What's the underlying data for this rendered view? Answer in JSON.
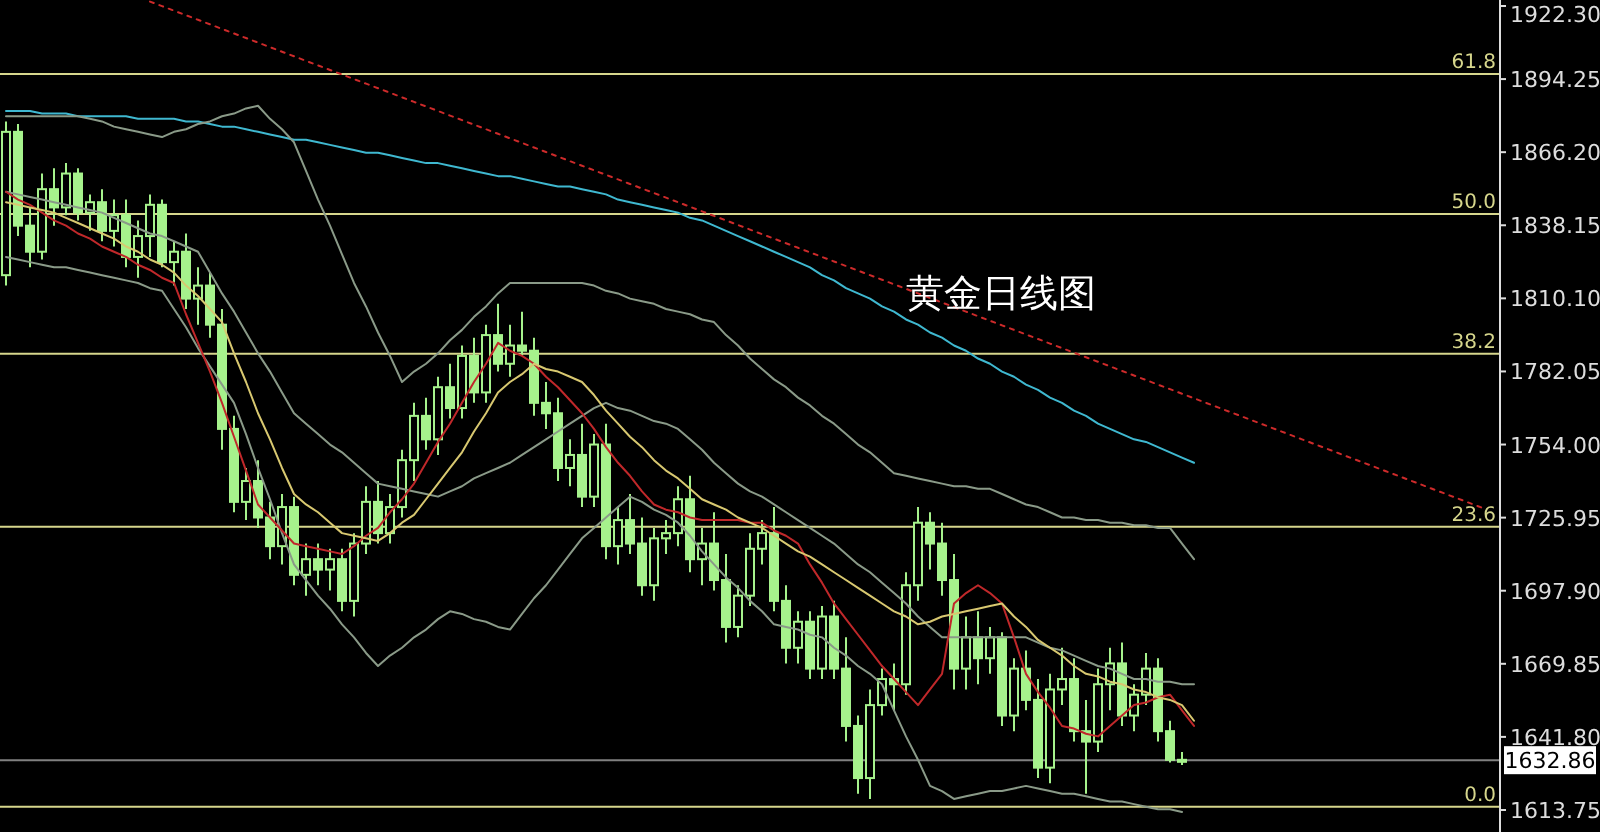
{
  "chart_data": {
    "type": "candlestick",
    "color": "#a6f28c",
    "tick_labels": "y",
    "annotations": [
      "黄金日线图",
      {
        "text": "61.8",
        "y": 1896.2
      },
      {
        "text": "50.0",
        "y": 1842.5
      },
      {
        "text": "38.2",
        "y": 1788.8
      },
      {
        "text": "23.6",
        "y": 1722.4
      },
      {
        "text": "0.0",
        "y": 1615
      }
    ],
    "ylim": [
      1605.3,
      1924.6
    ],
    "yticks": [
      1613.75,
      {
        "value": 1641.8,
        "label": "1641.80"
      },
      1669.85,
      {
        "value": 1697.9,
        "label": "1697.90"
      },
      1725.95,
      {
        "value": 1754,
        "label": "1754.00"
      },
      1782.05,
      {
        "value": 1810.1,
        "label": "1810.10"
      },
      1838.15,
      {
        "value": 1866.2,
        "label": "1866.20"
      },
      1894.25,
      {
        "value": 1922.3,
        "label": "1922.30"
      }
    ],
    "categories": [
      null,
      null,
      null,
      null,
      null,
      null,
      null,
      null,
      null,
      null,
      null,
      null,
      null,
      null,
      null,
      null,
      null,
      null,
      null,
      null,
      null,
      null,
      null,
      null,
      null,
      null,
      null,
      null,
      null,
      null,
      null,
      null,
      null,
      null,
      null,
      null,
      null,
      null,
      null,
      null,
      null,
      null,
      null,
      null,
      null,
      null,
      null,
      null,
      null,
      null,
      null,
      null,
      null,
      null,
      null,
      null,
      null,
      null,
      null,
      null,
      null,
      null,
      null,
      null,
      null,
      null,
      null,
      null,
      null,
      null,
      null,
      null,
      null,
      null,
      null,
      null,
      null,
      null,
      null,
      null,
      null,
      null,
      null,
      null,
      null,
      null,
      null,
      null,
      null,
      null,
      null,
      null,
      null,
      null,
      null,
      null,
      null,
      null,
      null,
      null,
      null,
      null,
      null,
      null,
      null,
      null,
      null,
      null,
      null,
      null,
      null,
      null,
      null,
      null,
      null,
      null,
      null,
      null,
      null,
      null,
      null,
      null,
      null,
      null,
      null
    ],
    "ohlc": [
      [
        1819,
        1878,
        1815,
        1874
      ],
      [
        1874,
        1877,
        1834,
        1838
      ],
      [
        1838,
        1845,
        1822,
        1828
      ],
      [
        1828,
        1858,
        1825,
        1852
      ],
      [
        1852,
        1860,
        1838,
        1845
      ],
      [
        1845,
        1862,
        1842,
        1858
      ],
      [
        1858,
        1860,
        1840,
        1843
      ],
      [
        1843,
        1850,
        1836,
        1847
      ],
      [
        1847,
        1852,
        1832,
        1836
      ],
      [
        1836,
        1848,
        1830,
        1842
      ],
      [
        1842,
        1848,
        1822,
        1826
      ],
      [
        1826,
        1840,
        1818,
        1834
      ],
      [
        1834,
        1850,
        1826,
        1846
      ],
      [
        1846,
        1848,
        1822,
        1824
      ],
      [
        1824,
        1832,
        1815,
        1828
      ],
      [
        1828,
        1835,
        1806,
        1810
      ],
      [
        1810,
        1822,
        1800,
        1815
      ],
      [
        1815,
        1820,
        1795,
        1800
      ],
      [
        1800,
        1806,
        1752,
        1760
      ],
      [
        1760,
        1765,
        1728,
        1732
      ],
      [
        1732,
        1745,
        1725,
        1740
      ],
      [
        1740,
        1748,
        1722,
        1726
      ],
      [
        1726,
        1732,
        1710,
        1715
      ],
      [
        1715,
        1735,
        1708,
        1730
      ],
      [
        1730,
        1734,
        1700,
        1704
      ],
      [
        1704,
        1716,
        1696,
        1710
      ],
      [
        1710,
        1716,
        1700,
        1706
      ],
      [
        1706,
        1714,
        1698,
        1710
      ],
      [
        1710,
        1714,
        1690,
        1694
      ],
      [
        1694,
        1720,
        1688,
        1716
      ],
      [
        1716,
        1738,
        1712,
        1732
      ],
      [
        1732,
        1740,
        1716,
        1720
      ],
      [
        1720,
        1735,
        1716,
        1730
      ],
      [
        1730,
        1752,
        1726,
        1748
      ],
      [
        1748,
        1770,
        1740,
        1765
      ],
      [
        1765,
        1772,
        1752,
        1756
      ],
      [
        1756,
        1780,
        1750,
        1776
      ],
      [
        1776,
        1785,
        1764,
        1768
      ],
      [
        1768,
        1792,
        1764,
        1788
      ],
      [
        1788,
        1795,
        1770,
        1774
      ],
      [
        1774,
        1800,
        1770,
        1796
      ],
      [
        1796,
        1808,
        1782,
        1785
      ],
      [
        1785,
        1800,
        1780,
        1792
      ],
      [
        1792,
        1805,
        1788,
        1790
      ],
      [
        1790,
        1795,
        1765,
        1770
      ],
      [
        1770,
        1778,
        1760,
        1766
      ],
      [
        1766,
        1772,
        1740,
        1745
      ],
      [
        1745,
        1756,
        1738,
        1750
      ],
      [
        1750,
        1762,
        1730,
        1734
      ],
      [
        1734,
        1758,
        1730,
        1754
      ],
      [
        1754,
        1762,
        1710,
        1715
      ],
      [
        1715,
        1730,
        1708,
        1725
      ],
      [
        1725,
        1735,
        1712,
        1716
      ],
      [
        1716,
        1726,
        1696,
        1700
      ],
      [
        1700,
        1722,
        1694,
        1718
      ],
      [
        1718,
        1725,
        1712,
        1720
      ],
      [
        1720,
        1738,
        1715,
        1733
      ],
      [
        1733,
        1742,
        1705,
        1710
      ],
      [
        1710,
        1722,
        1700,
        1716
      ],
      [
        1716,
        1728,
        1698,
        1702
      ],
      [
        1702,
        1712,
        1678,
        1684
      ],
      [
        1684,
        1700,
        1680,
        1696
      ],
      [
        1696,
        1720,
        1692,
        1714
      ],
      [
        1714,
        1725,
        1708,
        1720
      ],
      [
        1720,
        1730,
        1690,
        1694
      ],
      [
        1694,
        1700,
        1670,
        1676
      ],
      [
        1676,
        1690,
        1670,
        1686
      ],
      [
        1686,
        1690,
        1664,
        1668
      ],
      [
        1668,
        1692,
        1664,
        1688
      ],
      [
        1688,
        1694,
        1664,
        1668
      ],
      [
        1668,
        1680,
        1640,
        1646
      ],
      [
        1646,
        1650,
        1620,
        1626
      ],
      [
        1626,
        1660,
        1618,
        1654
      ],
      [
        1654,
        1668,
        1650,
        1664
      ],
      [
        1664,
        1670,
        1652,
        1662
      ],
      [
        1662,
        1705,
        1658,
        1700
      ],
      [
        1700,
        1730,
        1694,
        1724
      ],
      [
        1724,
        1728,
        1706,
        1716
      ],
      [
        1716,
        1724,
        1696,
        1702
      ],
      [
        1702,
        1712,
        1660,
        1668
      ],
      [
        1668,
        1688,
        1660,
        1680
      ],
      [
        1680,
        1690,
        1662,
        1672
      ],
      [
        1672,
        1684,
        1666,
        1680
      ],
      [
        1680,
        1682,
        1646,
        1650
      ],
      [
        1650,
        1672,
        1644,
        1668
      ],
      [
        1668,
        1675,
        1652,
        1656
      ],
      [
        1656,
        1664,
        1626,
        1630
      ],
      [
        1630,
        1666,
        1624,
        1660
      ],
      [
        1660,
        1676,
        1654,
        1664
      ],
      [
        1664,
        1672,
        1640,
        1644
      ],
      [
        1644,
        1656,
        1620,
        1640
      ],
      [
        1640,
        1668,
        1636,
        1662
      ],
      [
        1662,
        1676,
        1652,
        1670
      ],
      [
        1670,
        1678,
        1646,
        1650
      ],
      [
        1650,
        1662,
        1644,
        1658
      ],
      [
        1658,
        1674,
        1654,
        1668
      ],
      [
        1668,
        1672,
        1640,
        1644
      ],
      [
        1644,
        1648,
        1632,
        1633
      ],
      [
        1633,
        1636,
        1631,
        1632.86
      ],
      null,
      null,
      null,
      null,
      null,
      null,
      null,
      null,
      null,
      null,
      null,
      null,
      null,
      null,
      null,
      null,
      null,
      null,
      null,
      null,
      null,
      null,
      null,
      null,
      null,
      null
    ],
    "series": [
      {
        "type": "line",
        "color": "#cc2a2a",
        "line_style": "dotted",
        "values": [
          null,
          null,
          null,
          null,
          null,
          null,
          null,
          null,
          null,
          null,
          null,
          null,
          1924,
          1922.25,
          1920.5,
          1918.75,
          1917,
          1915.25,
          1913.5,
          1911.75,
          1910,
          1908.25,
          1906.5,
          1904.75,
          1903,
          1901.25,
          1899.5,
          1897.75,
          1896,
          1894.25,
          1892.5,
          1890.75,
          1889,
          1887.25,
          1885.5,
          1883.75,
          1882,
          1880.25,
          1878.5,
          1876.75,
          1875,
          1873.25,
          1871.5,
          1869.75,
          1868,
          1866.25,
          1864.5,
          1862.75,
          1861,
          1859.25,
          1857.5,
          1855.75,
          1854,
          1852.25,
          1850.5,
          1848.75,
          1847,
          1845.25,
          1843.5,
          1841.75,
          1840,
          1838.25,
          1836.5,
          1834.75,
          1833,
          1831.25,
          1829.5,
          1827.75,
          1826,
          1824.25,
          1822.5,
          1820.75,
          1819,
          1817.25,
          1815.5,
          1813.75,
          1812,
          1810.25,
          1808.5,
          1806.75,
          1805,
          1803.25,
          1801.5,
          1799.75,
          1798,
          1796.25,
          1794.5,
          1792.75,
          1791,
          1789.25,
          1787.5,
          1785.75,
          1784,
          1782.25,
          1780.5,
          1778.75,
          1777,
          1775.25,
          1773.5,
          1771.75,
          1770,
          1768.25,
          1766.5,
          1764.75,
          1763,
          1761.25,
          1759.5,
          1757.75,
          1756,
          1754.25,
          1752.5,
          1750.75,
          1749,
          1747.25,
          1745.5,
          1743.75,
          1742,
          1740.25,
          1738.5,
          1736.75,
          1735,
          1733.25,
          1731.5,
          1729.75,
          null
        ]
      },
      {
        "type": "line",
        "color": "#3fb8d0",
        "values": [
          1882,
          1882,
          1882,
          1881,
          1881,
          1881,
          1880,
          1880,
          1880,
          1880,
          1880,
          1879,
          1879,
          1879,
          1879,
          1878,
          1878,
          1877,
          1876,
          1876,
          1875,
          1874,
          1873,
          1872,
          1871,
          1871,
          1870,
          1869,
          1868,
          1867,
          1866,
          1866,
          1865,
          1864,
          1863,
          1862,
          1862,
          1861,
          1860,
          1859,
          1858,
          1857,
          1857,
          1856,
          1855,
          1854,
          1853,
          1853,
          1852,
          1851,
          1850,
          1848,
          1847,
          1846,
          1845,
          1844,
          1843,
          1841,
          1840,
          1838,
          1836,
          1834,
          1832,
          1830,
          1828,
          1826,
          1824,
          1822,
          1819,
          1817,
          1814,
          1812,
          1810,
          1807,
          1805,
          1802,
          1800,
          1797,
          1795,
          1792,
          1790,
          1787,
          1785,
          1782,
          1780,
          1777,
          1775,
          1772,
          1770,
          1767,
          1765,
          1762,
          1760,
          1758,
          1756,
          1755,
          1753,
          1751,
          1749,
          1747,
          null,
          null,
          null,
          null,
          null,
          null,
          null,
          null,
          null,
          null,
          null,
          null,
          null,
          null,
          null,
          null,
          null,
          null,
          null,
          null,
          null,
          null,
          null,
          null,
          null
        ]
      },
      {
        "type": "line",
        "color": "#8a9a88",
        "values": [
          1880,
          1880,
          1880,
          1880,
          1880,
          1880,
          1880,
          1879,
          1878,
          1876,
          1875,
          1874,
          1873,
          1872,
          1874,
          1875,
          1877,
          1878,
          1880,
          1881,
          1883,
          1884,
          1879,
          1875,
          1870,
          1859,
          1848,
          1838,
          1827,
          1816,
          1807,
          1797,
          1788,
          1778,
          1782,
          1785,
          1789,
          1794,
          1798,
          1803,
          1807,
          1812,
          1816,
          1816,
          1816,
          1816,
          1816,
          1816,
          1816,
          1815,
          1813,
          1812,
          1810,
          1809,
          1808,
          1806,
          1805,
          1804,
          1802,
          1801,
          1796,
          1792,
          1787,
          1783,
          1779,
          1776,
          1772,
          1769,
          1765,
          1762,
          1758,
          1754,
          1751,
          1747,
          1743,
          1742,
          1741,
          1740,
          1739,
          1738,
          1738,
          1737,
          1737,
          1735,
          1733,
          1731,
          1730,
          1728,
          1726,
          1726,
          1725,
          1725,
          1724,
          1724,
          1723,
          1723,
          1722,
          1722,
          1716,
          1710,
          null,
          null,
          null,
          null,
          null,
          null,
          null,
          null,
          null,
          null,
          null,
          null,
          null,
          null,
          null,
          null,
          null,
          null,
          null,
          null,
          null,
          null,
          null,
          null,
          null
        ]
      },
      {
        "type": "line",
        "color": "#8a9a88",
        "values": [
          1851,
          1850,
          1849,
          1848,
          1847,
          1846,
          1845,
          1844,
          1843,
          1841,
          1839,
          1837,
          1835,
          1834,
          1832,
          1830,
          1828,
          1820,
          1812,
          1805,
          1797,
          1789,
          1782,
          1774,
          1766,
          1762,
          1758,
          1754,
          1751,
          1747,
          1743,
          1739,
          1738,
          1737,
          1736,
          1735,
          1734,
          1736,
          1738,
          1741,
          1743,
          1745,
          1747,
          1750,
          1753,
          1756,
          1759,
          1762,
          1765,
          1768,
          1770,
          1768,
          1767,
          1765,
          1763,
          1762,
          1760,
          1756,
          1752,
          1747,
          1743,
          1739,
          1736,
          1734,
          1731,
          1728,
          1725,
          1722,
          1719,
          1716,
          1712,
          1708,
          1705,
          1701,
          1697,
          1693,
          1688,
          1684,
          1680,
          1680,
          1680,
          1680,
          1680,
          1680,
          1680,
          1680,
          1678,
          1676,
          1675,
          1673,
          1671,
          1669,
          1668,
          1666,
          1664,
          1664,
          1663,
          1663,
          1662,
          1662,
          null,
          null,
          null,
          null,
          null,
          null,
          null,
          null,
          null,
          null,
          null,
          null,
          null,
          null,
          null,
          null,
          null,
          null,
          null,
          null,
          null,
          null,
          null,
          null,
          null
        ]
      },
      {
        "type": "line",
        "color": "#8a9a88",
        "values": [
          1826,
          1825,
          1824,
          1823,
          1822,
          1822,
          1821,
          1820,
          1819,
          1818,
          1817,
          1816,
          1814,
          1813,
          1806,
          1799,
          1791,
          1784,
          1777,
          1770,
          1758,
          1745,
          1733,
          1720,
          1708,
          1702,
          1696,
          1691,
          1685,
          1680,
          1674,
          1669,
          1673,
          1676,
          1680,
          1683,
          1687,
          1690,
          1689,
          1687,
          1686,
          1684,
          1683,
          1689,
          1695,
          1700,
          1706,
          1712,
          1718,
          1722,
          1726,
          1730,
          1734,
          1732,
          1729,
          1727,
          1724,
          1719,
          1713,
          1708,
          1703,
          1699,
          1694,
          1690,
          1685,
          1684,
          1683,
          1681,
          1680,
          1676,
          1673,
          1669,
          1666,
          1662,
          1652,
          1642,
          1633,
          1623,
          1621,
          1618,
          1619,
          1620,
          1621,
          1621,
          1622,
          1623,
          1622,
          1621,
          1620,
          1620,
          1619,
          1618,
          1617,
          1617,
          1616,
          1615,
          1614,
          1614,
          1613,
          null,
          null,
          null,
          null,
          null,
          null,
          null,
          null,
          null,
          null,
          null,
          null,
          null,
          null,
          null,
          null,
          null,
          null,
          null,
          null,
          null,
          null,
          null,
          null,
          null,
          null
        ]
      },
      {
        "type": "line",
        "color": "#c0282a",
        "values": [
          1851,
          1848,
          1846,
          1843,
          1840,
          1838,
          1835,
          1833,
          1830,
          1828,
          1826,
          1823,
          1821,
          1818,
          1816,
          1804,
          1793,
          1782,
          1770,
          1757,
          1744,
          1731,
          1726,
          1721,
          1716,
          1715,
          1714,
          1713,
          1712,
          1715,
          1719,
          1722,
          1728,
          1733,
          1739,
          1747,
          1755,
          1762,
          1770,
          1778,
          1785,
          1793,
          1790,
          1788,
          1785,
          1780,
          1776,
          1771,
          1766,
          1760,
          1753,
          1747,
          1742,
          1736,
          1731,
          1729,
          1728,
          1726,
          1725,
          1725,
          1725,
          1725,
          1724,
          1724,
          1721,
          1719,
          1716,
          1708,
          1701,
          1693,
          1687,
          1681,
          1675,
          1669,
          1664,
          1659,
          1654,
          1660,
          1666,
          1693,
          1697,
          1700,
          1697,
          1693,
          1680,
          1666,
          1659,
          1653,
          1646,
          1645,
          1643,
          1642,
          1646,
          1650,
          1654,
          1655,
          1657,
          1658,
          1652,
          1646,
          null,
          null,
          null,
          null,
          null,
          null,
          null,
          null,
          null,
          null,
          null,
          null,
          null,
          null,
          null,
          null,
          null,
          null,
          null,
          null,
          null,
          null,
          null,
          null,
          null
        ]
      },
      {
        "type": "line",
        "color": "#d8c870",
        "values": [
          1847,
          1846,
          1845,
          1844,
          1843,
          1841,
          1839,
          1837,
          1835,
          1833,
          1830,
          1828,
          1825,
          1823,
          1820,
          1815,
          1811,
          1806,
          1801,
          1789,
          1778,
          1766,
          1756,
          1745,
          1735,
          1731,
          1728,
          1724,
          1720,
          1719,
          1718,
          1717,
          1720,
          1724,
          1727,
          1733,
          1739,
          1745,
          1751,
          1759,
          1766,
          1774,
          1778,
          1781,
          1785,
          1783,
          1782,
          1780,
          1778,
          1773,
          1767,
          1762,
          1757,
          1753,
          1748,
          1744,
          1741,
          1737,
          1733,
          1731,
          1729,
          1726,
          1724,
          1722,
          1719,
          1716,
          1713,
          1711,
          1708,
          1705,
          1702,
          1699,
          1696,
          1693,
          1690,
          1688,
          1685,
          1686,
          1688,
          1689,
          1690,
          1691,
          1692,
          1693,
          1688,
          1684,
          1679,
          1676,
          1673,
          1669,
          1666,
          1665,
          1663,
          1662,
          1660,
          1659,
          1657,
          1656,
          1654,
          1648,
          null,
          null,
          null,
          null,
          null,
          null,
          null,
          null,
          null,
          null,
          null,
          null,
          null,
          null,
          null,
          null,
          null,
          null,
          null,
          null,
          null,
          null,
          null,
          null,
          null
        ]
      }
    ],
    "ref_lines": [
      {
        "axis": "y",
        "value": 1896.2,
        "color": "#d6d68c"
      },
      {
        "axis": "y",
        "value": 1842.5,
        "color": "#d6d68c"
      },
      {
        "axis": "y",
        "value": 1788.8,
        "color": "#d6d68c"
      },
      {
        "axis": "y",
        "value": 1722.4,
        "color": "#d6d68c"
      },
      {
        "axis": "y",
        "value": 1615,
        "color": "#d6d68c"
      },
      {
        "axis": "y",
        "value": 1632.86,
        "label": "1632.86",
        "color": "#808080"
      }
    ]
  }
}
